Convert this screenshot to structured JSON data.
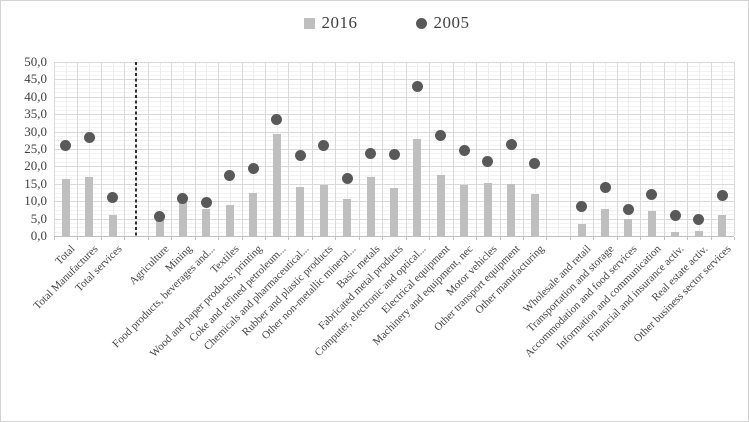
{
  "chart_data": {
    "type": "bar",
    "title": "",
    "xlabel": "",
    "ylabel": "",
    "ylim": [
      0,
      50
    ],
    "y_tick_step": 5,
    "decimal_separator": ",",
    "y_tick_labels_top_down": [
      "50,0",
      "45,0",
      "40,0",
      "35,0",
      "30,0",
      "25,0",
      "20,0",
      "15,0",
      "10,0",
      "5,0",
      "0,0"
    ],
    "grid": {
      "major_horizontal": true,
      "minor_horizontal": true,
      "vertical": true,
      "minor_interval": 1.25
    },
    "legend_position": "top-center",
    "categories": [
      "Total",
      "Total Manufactures",
      "Total services",
      "Agriculture",
      "Mining",
      "Food products, beverages and...",
      "Textiles",
      "Wood and paper products; printing",
      "Coke and refined petroleum...",
      "Chemicals and pharmaceutical...",
      "Rubber and plastic products",
      "Other non-metallic mineral...",
      "Basic metals",
      "Fabricated metal products",
      "Computer, electronic and optical...",
      "Electrical equipment",
      "Machinery and equipment, nec",
      "Motor vehicles",
      "Other transport equipment",
      "Other manufacturing",
      "Wholesale and retail",
      "Transportation and storage",
      "Accommodation and food services",
      "Information and communication",
      "Financial and insurance activ.",
      "Real estate activ.",
      "Other business sector services"
    ],
    "series": [
      {
        "name": "2016",
        "style": "bar",
        "marker": "square",
        "color": "#bfbfbf",
        "values": [
          16.3,
          17.0,
          6.1,
          4.8,
          9.9,
          7.7,
          8.9,
          12.4,
          29.4,
          14.1,
          14.7,
          10.5,
          17.0,
          13.9,
          27.8,
          17.4,
          14.6,
          15.3,
          14.9,
          12.0,
          3.5,
          7.7,
          4.9,
          7.3,
          1.2,
          1.4,
          5.9
        ]
      },
      {
        "name": "2005",
        "style": "scatter",
        "marker": "circle",
        "color": "#595959",
        "values": [
          26.1,
          28.4,
          11.0,
          5.7,
          10.7,
          9.6,
          17.5,
          19.3,
          33.5,
          23.2,
          26.1,
          16.6,
          23.7,
          23.5,
          43.0,
          29.0,
          24.6,
          21.4,
          26.3,
          20.9,
          8.6,
          13.9,
          7.5,
          12.0,
          6.0,
          4.6,
          11.7
        ]
      }
    ],
    "separators": [
      {
        "type": "dashed-line",
        "after_category": "Total services"
      },
      {
        "type": "gap",
        "after_category": "Other manufacturing"
      }
    ],
    "colors": {
      "bar_fill": "#bfbfbf",
      "dot_fill": "#595959",
      "major_grid": "#d9d9d9",
      "minor_grid": "#f2f2f2",
      "vertical_grid_major": "#d9d9d9",
      "vertical_grid_minor": "#ececec",
      "axis_line": "#bfbfbf",
      "separator_line": "#303030",
      "text": "#404040"
    }
  }
}
